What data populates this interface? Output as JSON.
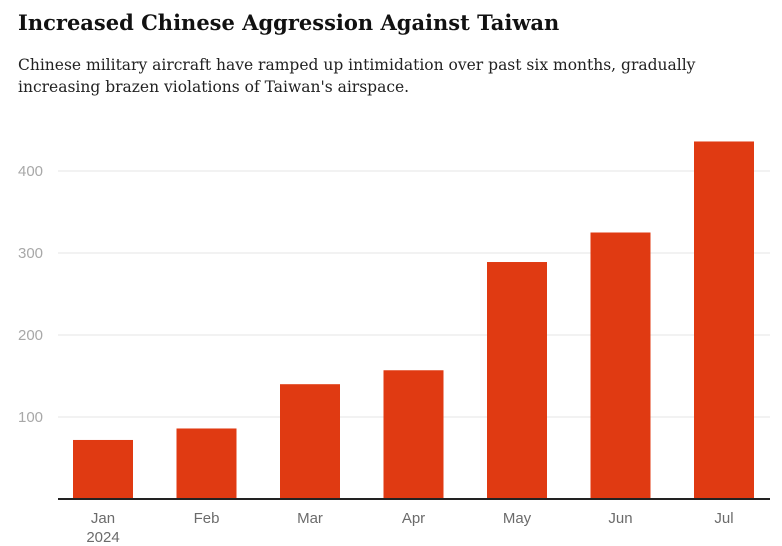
{
  "chart_data": {
    "type": "bar",
    "title": "Increased Chinese Aggression Against Taiwan",
    "subtitle": "Chinese military aircraft have ramped up intimidation over past six months, gradually increasing brazen violations of Taiwan's airspace.",
    "categories": [
      "Jan",
      "Feb",
      "Mar",
      "Apr",
      "May",
      "Jun",
      "Jul"
    ],
    "category_sublabels": [
      "2024",
      "",
      "",
      "",
      "",
      "",
      ""
    ],
    "values": [
      72,
      86,
      140,
      157,
      289,
      325,
      436
    ],
    "yticks": [
      100,
      200,
      300,
      400
    ],
    "ylim": [
      0,
      440
    ],
    "xlabel": "",
    "ylabel": "",
    "grid": true,
    "bar_color": "#e03a12"
  }
}
